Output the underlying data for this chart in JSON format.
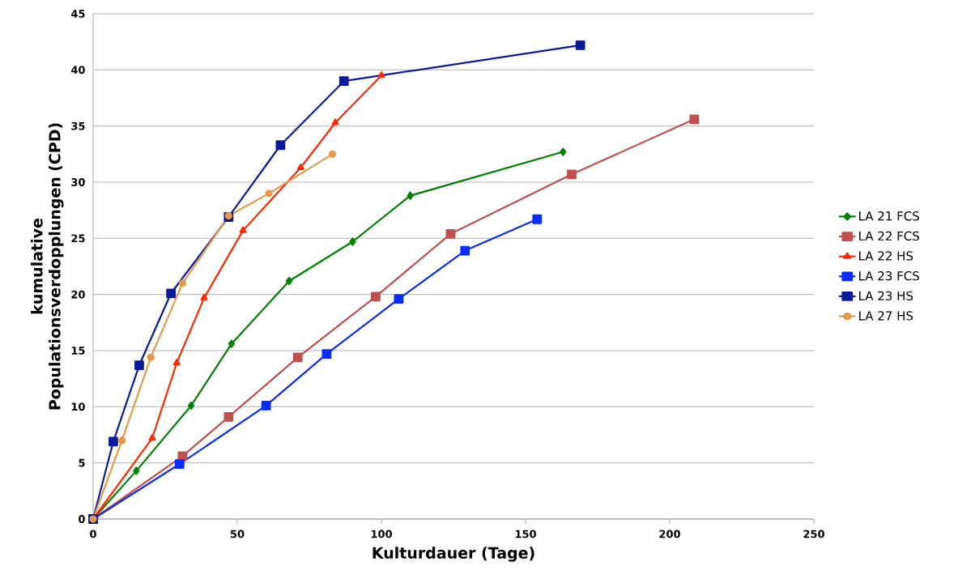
{
  "chart_data": {
    "type": "line",
    "xlabel": "Kulturdauer (Tage)",
    "ylabel": "kumulative Populationsverdopplungen (CPD)",
    "xlim": [
      0,
      250
    ],
    "xticks": [
      0,
      50,
      100,
      150,
      200,
      250
    ],
    "ylim": [
      0,
      45
    ],
    "yticks": [
      0,
      5,
      10,
      15,
      20,
      25,
      30,
      35,
      40,
      45
    ],
    "grid": "y",
    "legend": "right",
    "series": [
      {
        "name": "LA 21 FCS",
        "color": "#008000",
        "marker": "diamond",
        "x": [
          0,
          15,
          34,
          48,
          68,
          90,
          110,
          163
        ],
        "values": [
          0,
          4.3,
          10.1,
          15.6,
          21.2,
          24.7,
          28.8,
          32.7
        ]
      },
      {
        "name": "LA 22 FCS",
        "color": "#c0504d",
        "marker": "square",
        "x": [
          0,
          31,
          47,
          71,
          98,
          124,
          166,
          208.5
        ],
        "values": [
          0,
          5.6,
          9.1,
          14.4,
          19.8,
          25.4,
          30.7,
          35.6
        ]
      },
      {
        "name": "LA 22 HS",
        "color": "#ff2a00",
        "marker": "triangle",
        "x": [
          0,
          20.5,
          29,
          38.5,
          52,
          72,
          84,
          100
        ],
        "values": [
          0,
          7.2,
          13.9,
          19.7,
          25.7,
          31.3,
          35.3,
          39.5
        ]
      },
      {
        "name": "LA 23 FCS",
        "color": "#0a2cff",
        "marker": "square",
        "x": [
          0,
          30,
          60,
          81,
          106,
          129,
          154
        ],
        "values": [
          0,
          4.9,
          10.1,
          14.7,
          19.6,
          23.9,
          26.7
        ]
      },
      {
        "name": "LA 23 HS",
        "color": "#0a1a9a",
        "marker": "square",
        "x": [
          0,
          7,
          16,
          27,
          47,
          65,
          87,
          169
        ],
        "values": [
          0,
          6.9,
          13.7,
          20.1,
          26.9,
          33.3,
          39.0,
          42.2
        ]
      },
      {
        "name": "LA 27 HS",
        "color": "#e59a4b",
        "marker": "circle",
        "x": [
          0,
          10,
          20,
          31,
          47,
          61,
          83
        ],
        "values": [
          0,
          7.0,
          14.4,
          21.0,
          27.0,
          29.0,
          32.5
        ]
      }
    ]
  }
}
